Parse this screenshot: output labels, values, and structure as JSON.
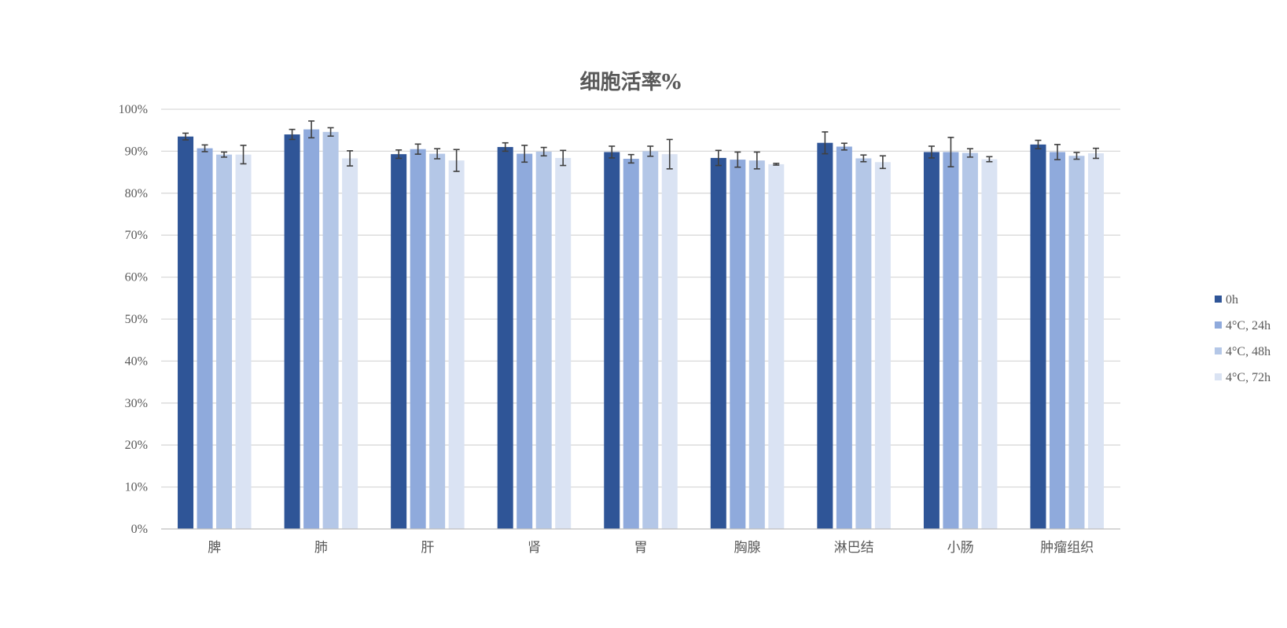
{
  "chart_data": {
    "type": "bar",
    "title": "细胞活率%",
    "xlabel": "",
    "ylabel": "",
    "ylim": [
      0,
      100
    ],
    "y_ticks": [
      "0%",
      "10%",
      "20%",
      "30%",
      "40%",
      "50%",
      "60%",
      "70%",
      "80%",
      "90%",
      "100%"
    ],
    "grid": true,
    "legend_position": "right",
    "categories": [
      "脾",
      "肺",
      "肝",
      "肾",
      "胃",
      "胸腺",
      "淋巴结",
      "小肠",
      "肿瘤组织"
    ],
    "series": [
      {
        "name": "0h",
        "color": "#2f5597",
        "values": [
          93.5,
          94.0,
          89.3,
          91.0,
          89.8,
          88.4,
          92.0,
          89.8,
          91.6
        ],
        "errors": [
          0.8,
          1.2,
          1.0,
          1.0,
          1.4,
          1.8,
          2.6,
          1.4,
          1.0
        ]
      },
      {
        "name": "4°C, 24h",
        "color": "#8faadc",
        "values": [
          90.7,
          95.2,
          90.5,
          89.4,
          88.2,
          88.0,
          91.1,
          89.8,
          89.8
        ],
        "errors": [
          0.8,
          2.0,
          1.2,
          2.0,
          1.0,
          1.8,
          0.8,
          3.5,
          1.8
        ]
      },
      {
        "name": "4°C, 48h",
        "color": "#b4c7e7",
        "values": [
          89.2,
          94.6,
          89.4,
          89.9,
          90.0,
          87.8,
          88.3,
          89.6,
          88.9
        ],
        "errors": [
          0.6,
          1.0,
          1.2,
          1.0,
          1.2,
          2.0,
          0.8,
          1.0,
          0.8
        ]
      },
      {
        "name": "4°C, 72h",
        "color": "#dae3f3",
        "values": [
          89.2,
          88.3,
          87.8,
          88.4,
          89.3,
          86.9,
          87.4,
          88.1,
          89.5
        ],
        "errors": [
          2.2,
          1.8,
          2.6,
          1.8,
          3.5,
          0.2,
          1.5,
          0.6,
          1.2
        ]
      }
    ]
  }
}
